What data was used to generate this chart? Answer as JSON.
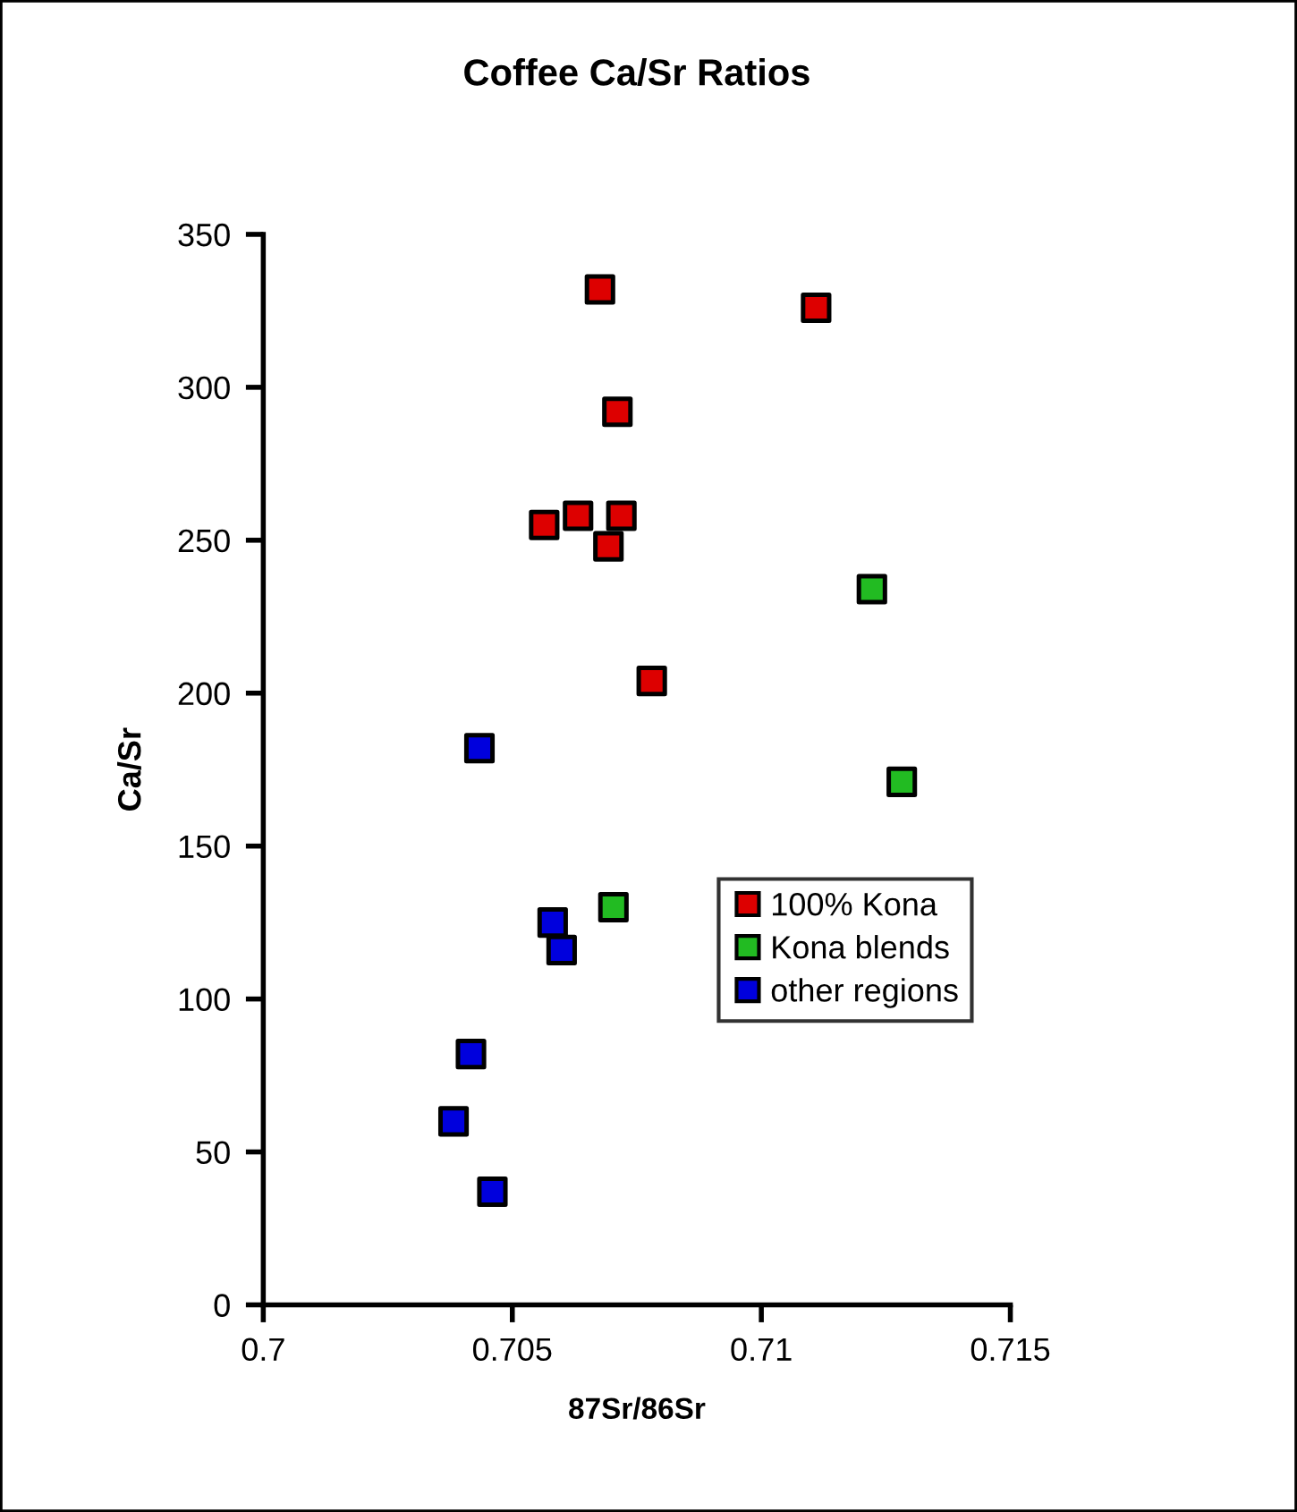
{
  "chart_data": {
    "type": "scatter",
    "title": "Coffee Ca/Sr Ratios",
    "xlabel": "87Sr/86Sr",
    "ylabel": "Ca/Sr",
    "xlim": [
      0.7,
      0.715
    ],
    "xticks": [
      0.7,
      0.705,
      0.71,
      0.715
    ],
    "ylim": [
      0,
      350
    ],
    "yticks": [
      0,
      50,
      100,
      150,
      200,
      250,
      300,
      350
    ],
    "grid": false,
    "legend": "lower right",
    "marker": "square",
    "series": [
      {
        "name": "100% Kona",
        "color": "#dd0000",
        "x": [
          0.70676,
          0.7111,
          0.70711,
          0.70564,
          0.70632,
          0.70719,
          0.70693,
          0.7078
        ],
        "values": [
          332,
          326,
          292,
          255,
          258,
          258,
          248,
          204
        ]
      },
      {
        "name": "Kona blends",
        "color": "#22bb22",
        "x": [
          0.71222,
          0.71282,
          0.70703
        ],
        "values": [
          234,
          171,
          130
        ]
      },
      {
        "name": "other regions",
        "color": "#0000dd",
        "x": [
          0.70434,
          0.70581,
          0.70599,
          0.70417,
          0.70382,
          0.7046
        ],
        "values": [
          182,
          125,
          116,
          82,
          60,
          37
        ]
      }
    ]
  }
}
